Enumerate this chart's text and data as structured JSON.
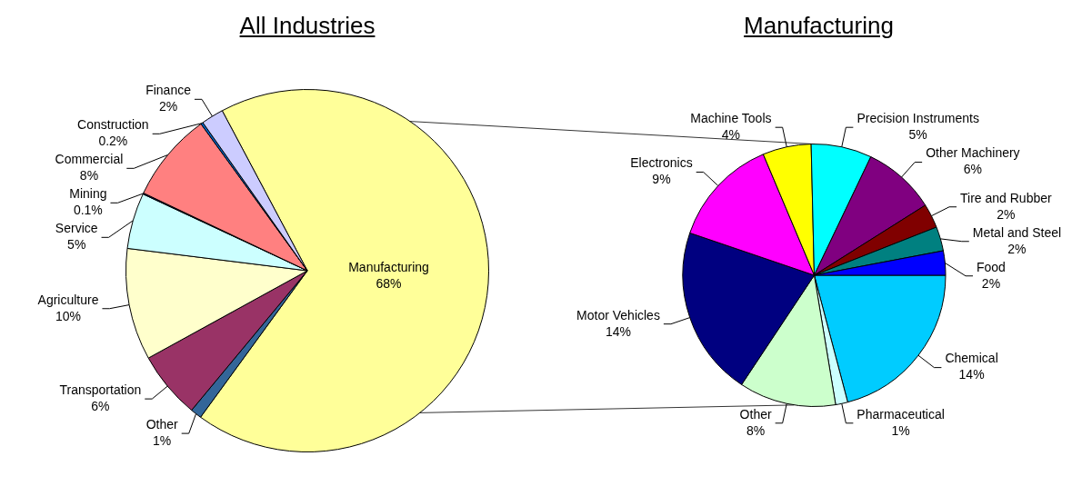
{
  "chart_data": [
    {
      "type": "pie",
      "title": "All Industries",
      "categories": [
        "Manufacturing",
        "Other",
        "Transportation",
        "Agriculture",
        "Service",
        "Mining",
        "Commercial",
        "Construction",
        "Finance"
      ],
      "values": [
        68,
        1,
        6,
        10,
        5,
        0.1,
        8,
        0.2,
        2
      ],
      "value_labels": [
        "68%",
        "1%",
        "6%",
        "10%",
        "5%",
        "0.1%",
        "8%",
        "0.2%",
        "2%"
      ],
      "colors": [
        "#ffff99",
        "#336699",
        "#993366",
        "#ffffcc",
        "#ccffff",
        "#000080",
        "#ff8080",
        "#0066cc",
        "#ccccff"
      ],
      "legend": false
    },
    {
      "type": "pie",
      "title": "Manufacturing",
      "categories": [
        "Chemical",
        "Pharmaceutical",
        "Other",
        "Motor Vehicles",
        "Electronics",
        "Machine Tools",
        "Precision Instruments",
        "Other Machinery",
        "Tire and Rubber",
        "Metal and Steel",
        "Food"
      ],
      "values": [
        14,
        1,
        8,
        14,
        9,
        4,
        5,
        6,
        2,
        2,
        2
      ],
      "value_labels": [
        "14%",
        "1%",
        "8%",
        "14%",
        "9%",
        "4%",
        "5%",
        "6%",
        "2%",
        "2%",
        "2%"
      ],
      "colors": [
        "#00ccff",
        "#ccffff",
        "#ccffcc",
        "#000080",
        "#ff00ff",
        "#ffff00",
        "#00ffff",
        "#800080",
        "#800000",
        "#008080",
        "#0000ff"
      ],
      "legend": false
    }
  ]
}
